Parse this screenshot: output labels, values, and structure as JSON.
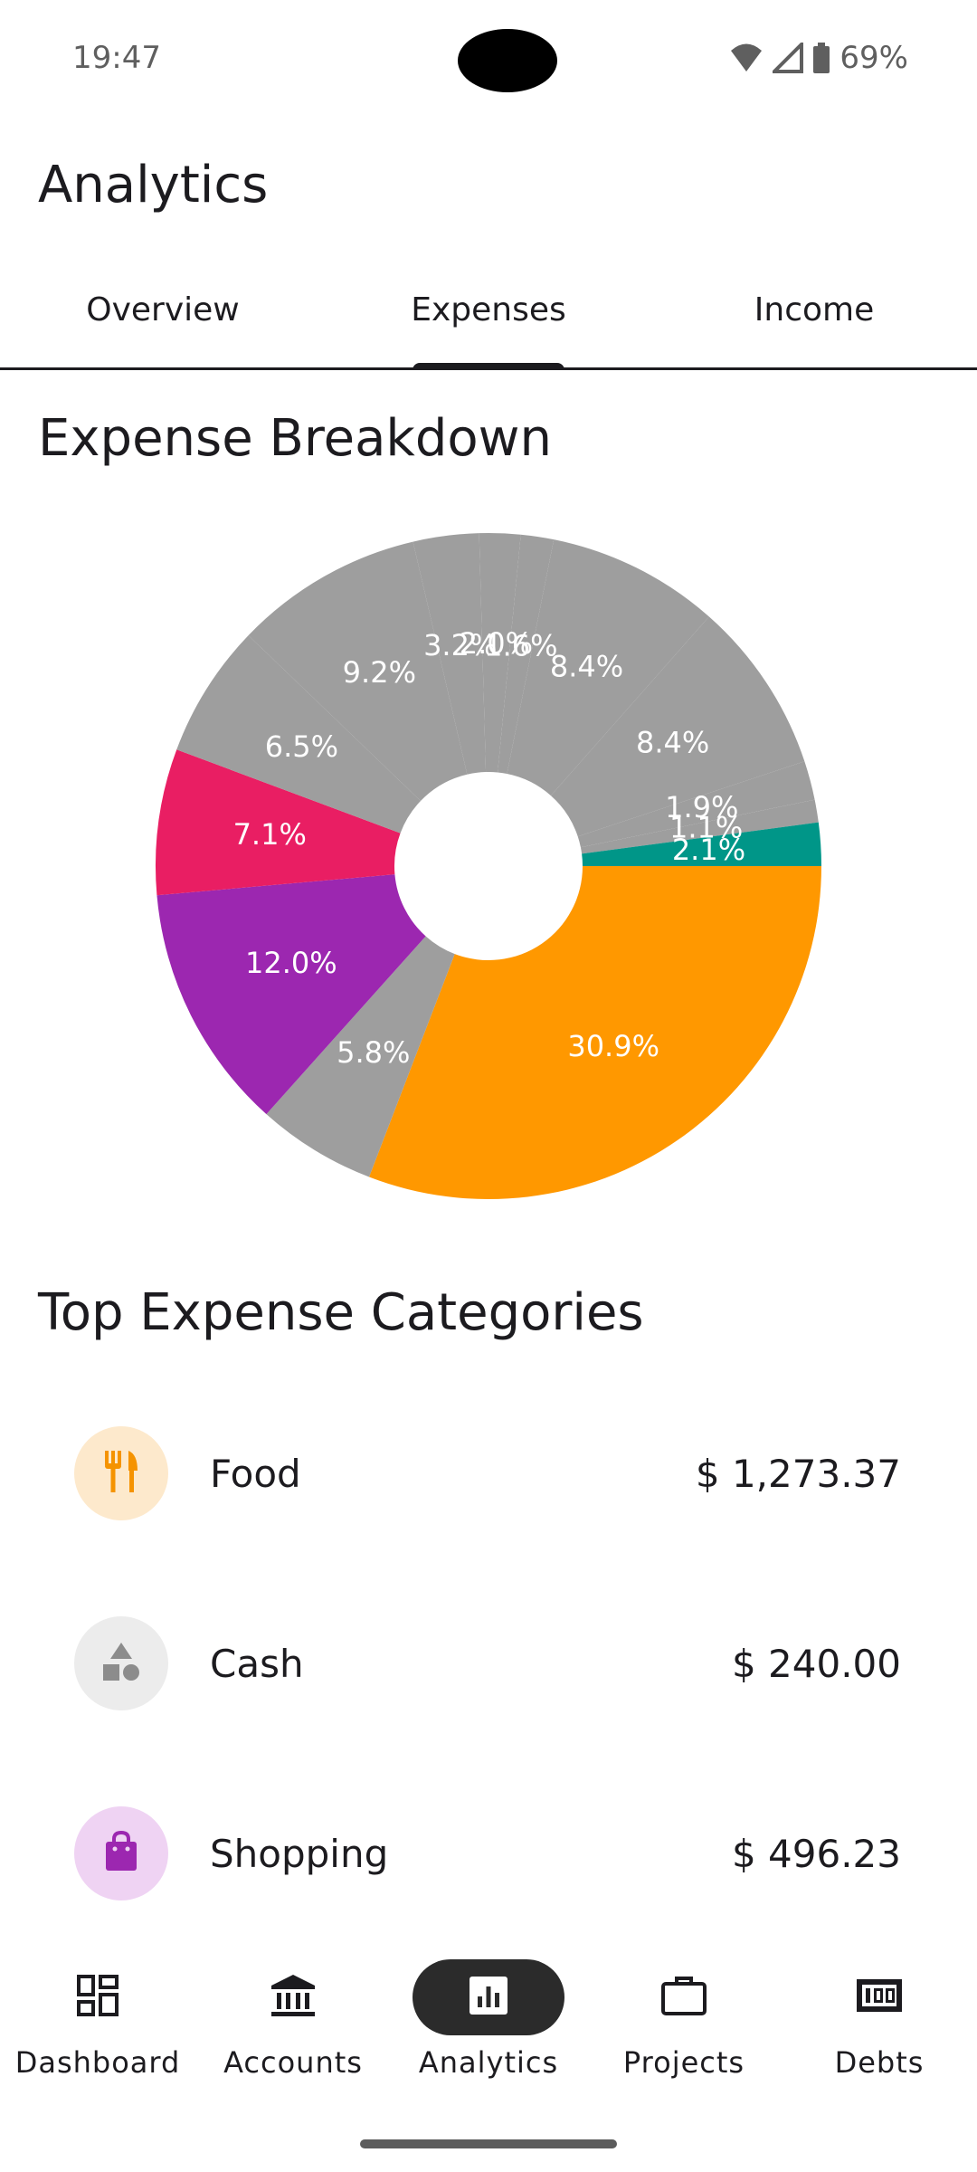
{
  "status_bar": {
    "time": "19:47",
    "battery": "69%"
  },
  "app_bar": {
    "title": "Analytics"
  },
  "tabs": [
    {
      "label": "Overview",
      "active": false
    },
    {
      "label": "Expenses",
      "active": true
    },
    {
      "label": "Income",
      "active": false
    }
  ],
  "breakdown": {
    "heading": "Expense Breakdown"
  },
  "chart_data": {
    "type": "pie",
    "title": "Expense Breakdown",
    "slices": [
      {
        "value": 30.9,
        "label": "30.9%",
        "color": "#ff9800"
      },
      {
        "value": 5.8,
        "label": "5.8%",
        "color": "#9e9e9e"
      },
      {
        "value": 12.0,
        "label": "12.0%",
        "color": "#9c27b0"
      },
      {
        "value": 7.1,
        "label": "7.1%",
        "color": "#e91e63"
      },
      {
        "value": 6.5,
        "label": "6.5%",
        "color": "#9e9e9e"
      },
      {
        "value": 9.2,
        "label": "9.2%",
        "color": "#9e9e9e"
      },
      {
        "value": 3.2,
        "label": "3.2%",
        "color": "#9e9e9e"
      },
      {
        "value": 2.0,
        "label": "2.0%",
        "color": "#9e9e9e"
      },
      {
        "value": 1.6,
        "label": "1.6%",
        "color": "#9e9e9e"
      },
      {
        "value": 8.4,
        "label": "8.4%",
        "color": "#9e9e9e"
      },
      {
        "value": 8.4,
        "label": "8.4%",
        "color": "#9e9e9e"
      },
      {
        "value": 1.9,
        "label": "1.9%",
        "color": "#9e9e9e"
      },
      {
        "value": 1.1,
        "label": "1.1%",
        "color": "#9e9e9e"
      },
      {
        "value": 2.1,
        "label": "2.1%",
        "color": "#009688"
      }
    ]
  },
  "top_categories": {
    "heading": "Top Expense Categories",
    "items": [
      {
        "name": "Food",
        "amount": "$ 1,273.37",
        "icon": "fork-knife-icon",
        "icon_color": "#f59300",
        "bg": "#fde9cc"
      },
      {
        "name": "Cash",
        "amount": "$ 240.00",
        "icon": "shapes-icon",
        "icon_color": "#8c8c8c",
        "bg": "#ececec"
      },
      {
        "name": "Shopping",
        "amount": "$ 496.23",
        "icon": "shopping-bag-icon",
        "icon_color": "#9c27b0",
        "bg": "#efd3f3"
      }
    ]
  },
  "bottom_nav": [
    {
      "label": "Dashboard",
      "icon": "dashboard-icon",
      "active": false
    },
    {
      "label": "Accounts",
      "icon": "bank-icon",
      "active": false
    },
    {
      "label": "Analytics",
      "icon": "analytics-icon",
      "active": true
    },
    {
      "label": "Projects",
      "icon": "briefcase-icon",
      "active": false
    },
    {
      "label": "Debts",
      "icon": "money-icon",
      "active": false
    }
  ]
}
